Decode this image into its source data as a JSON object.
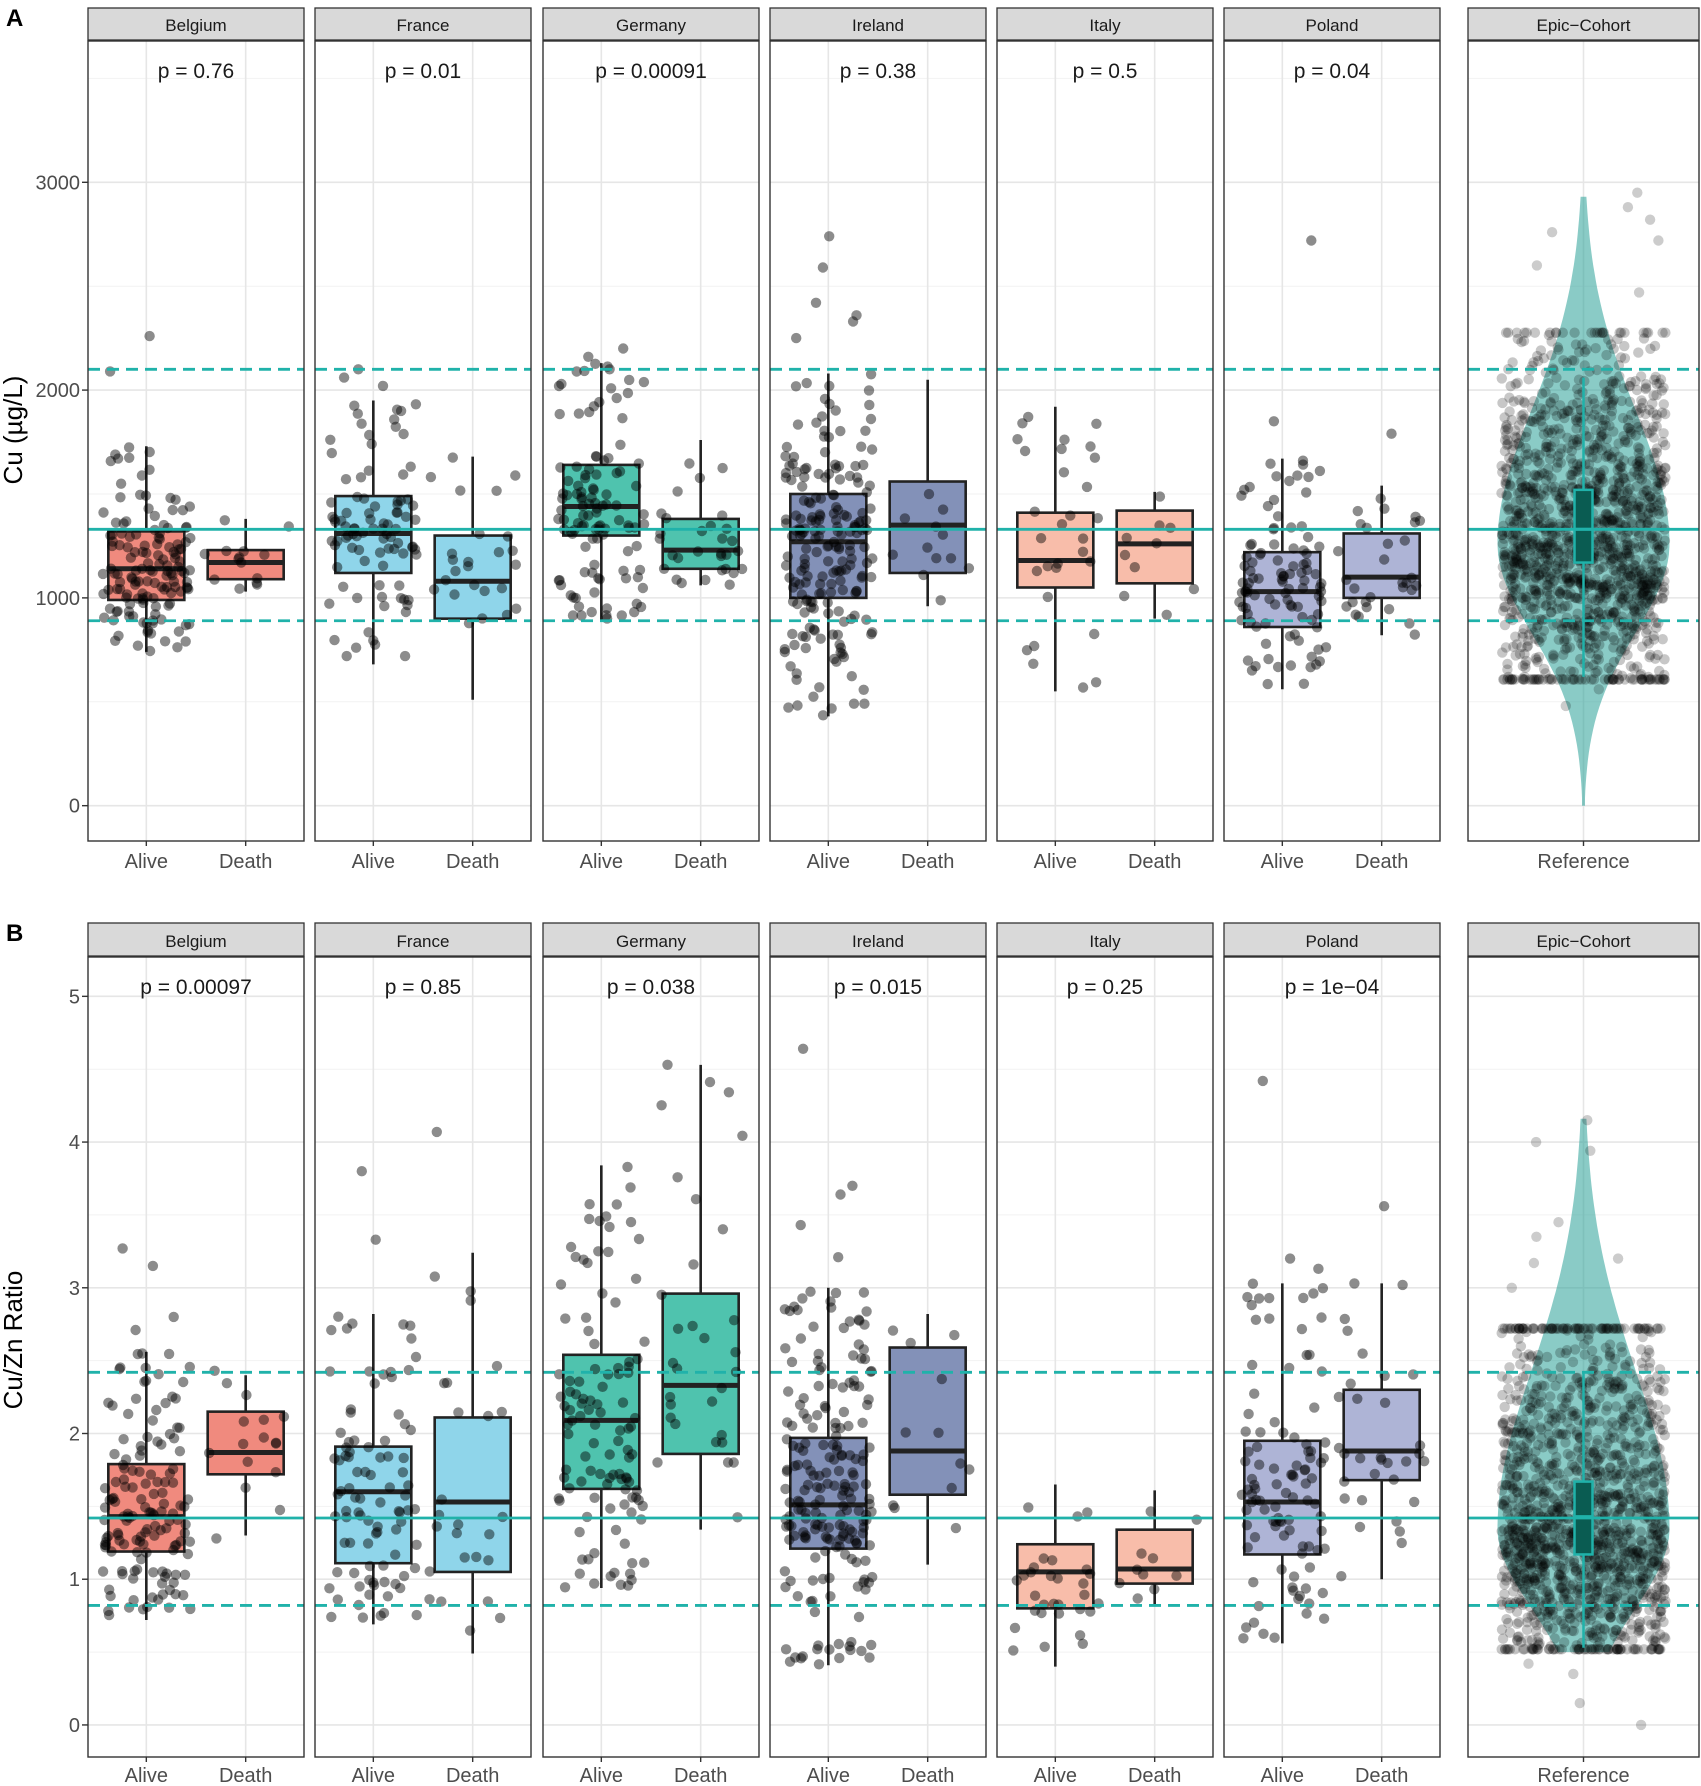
{
  "figure": {
    "reference_lines": {
      "color": "#20B2AA",
      "A": {
        "solid": 1330,
        "dashed": [
          890,
          2100
        ]
      },
      "B": {
        "solid": 1.42,
        "dashed": [
          0.82,
          2.42
        ]
      }
    },
    "point_color": "#000000",
    "violin_color": "#2aa198",
    "violin_box_color": "#0a5c52"
  },
  "chart_data": [
    {
      "panel": "A",
      "type": "box",
      "ylabel": "Cu (µg/L)",
      "ylim": [
        -170,
        3680
      ],
      "yticks": [
        0,
        1000,
        2000,
        3000
      ],
      "ytick_labels": [
        "0",
        "1000",
        "2000",
        "3000"
      ],
      "minor_ticks": [
        500,
        1500,
        2500,
        3500
      ],
      "facets": [
        {
          "name": "Belgium",
          "p": "p = 0.76",
          "fill": "#F08A7E",
          "groups": [
            {
              "label": "Alive",
              "min": 740,
              "q1": 990,
              "median": 1140,
              "q3": 1320,
              "max": 1730,
              "n": 140,
              "outliers": [
                2260,
                2090
              ]
            },
            {
              "label": "Death",
              "min": 1030,
              "q1": 1090,
              "median": 1170,
              "q3": 1230,
              "max": 1380,
              "n": 14,
              "outliers": []
            }
          ]
        },
        {
          "name": "France",
          "p": "p = 0.01",
          "fill": "#8FD5EA",
          "groups": [
            {
              "label": "Alive",
              "min": 680,
              "q1": 1120,
              "median": 1310,
              "q3": 1490,
              "max": 1950,
              "n": 90,
              "outliers": [
                2060,
                2100,
                2020
              ]
            },
            {
              "label": "Death",
              "min": 510,
              "q1": 900,
              "median": 1080,
              "q3": 1300,
              "max": 1680,
              "n": 25,
              "outliers": []
            }
          ]
        },
        {
          "name": "Germany",
          "p": "p = 0.00091",
          "fill": "#4FC3AE",
          "groups": [
            {
              "label": "Alive",
              "min": 890,
              "q1": 1300,
              "median": 1440,
              "q3": 1640,
              "max": 2130,
              "n": 110,
              "outliers": [
                2200,
                2160,
                2100
              ]
            },
            {
              "label": "Death",
              "min": 1060,
              "q1": 1140,
              "median": 1230,
              "q3": 1380,
              "max": 1760,
              "n": 30,
              "outliers": []
            }
          ]
        },
        {
          "name": "Ireland",
          "p": "p = 0.38",
          "fill": "#8391B8",
          "groups": [
            {
              "label": "Alive",
              "min": 430,
              "q1": 1000,
              "median": 1270,
              "q3": 1500,
              "max": 2080,
              "n": 200,
              "outliers": [
                2590,
                2420,
                2360,
                2740,
                2250,
                2330
              ]
            },
            {
              "label": "Death",
              "min": 960,
              "q1": 1120,
              "median": 1350,
              "q3": 1560,
              "max": 2050,
              "n": 12,
              "outliers": []
            }
          ]
        },
        {
          "name": "Italy",
          "p": "p = 0.5",
          "fill": "#F8BDAA",
          "groups": [
            {
              "label": "Alive",
              "min": 550,
              "q1": 1050,
              "median": 1180,
              "q3": 1410,
              "max": 1920,
              "n": 30,
              "outliers": []
            },
            {
              "label": "Death",
              "min": 900,
              "q1": 1070,
              "median": 1260,
              "q3": 1420,
              "max": 1510,
              "n": 10,
              "outliers": []
            }
          ]
        },
        {
          "name": "Poland",
          "p": "p = 0.04",
          "fill": "#AEB4D6",
          "groups": [
            {
              "label": "Alive",
              "min": 560,
              "q1": 860,
              "median": 1030,
              "q3": 1220,
              "max": 1670,
              "n": 100,
              "outliers": [
                2720,
                1850,
                1660
              ]
            },
            {
              "label": "Death",
              "min": 820,
              "q1": 1000,
              "median": 1100,
              "q3": 1310,
              "max": 1540,
              "n": 30,
              "outliers": [
                1790
              ]
            }
          ]
        },
        {
          "name": "Epic−Cohort",
          "p": "",
          "reference": true,
          "groups": [
            {
              "label": "Reference",
              "min": 620,
              "q1": 1170,
              "median": 1330,
              "q3": 1520,
              "max": 2060,
              "violin_min": 0,
              "violin_max": 2930,
              "violin_center": 1260,
              "n": 1500,
              "outliers": [
                2950,
                2880,
                2820,
                2760,
                2720,
                2600,
                2470,
                480,
                560,
                620
              ]
            }
          ]
        }
      ]
    },
    {
      "panel": "B",
      "type": "box",
      "ylabel": "Cu/Zn Ratio",
      "ylim": [
        -0.22,
        5.27
      ],
      "yticks": [
        0,
        1,
        2,
        3,
        4,
        5
      ],
      "ytick_labels": [
        "0",
        "1",
        "2",
        "3",
        "4",
        "5"
      ],
      "minor_ticks": [
        0.5,
        1.5,
        2.5,
        3.5,
        4.5
      ],
      "facets": [
        {
          "name": "Belgium",
          "p": "p = 0.00097",
          "fill": "#F08A7E",
          "groups": [
            {
              "label": "Alive",
              "min": 0.72,
              "q1": 1.19,
              "median": 1.43,
              "q3": 1.79,
              "max": 2.56,
              "n": 140,
              "outliers": [
                3.27,
                3.15,
                2.8,
                2.71
              ]
            },
            {
              "label": "Death",
              "min": 1.3,
              "q1": 1.72,
              "median": 1.87,
              "q3": 2.15,
              "max": 2.4,
              "n": 14,
              "outliers": [
                2.43,
                1.28
              ]
            }
          ]
        },
        {
          "name": "France",
          "p": "p = 0.85",
          "fill": "#8FD5EA",
          "groups": [
            {
              "label": "Alive",
              "min": 0.69,
              "q1": 1.11,
              "median": 1.6,
              "q3": 1.91,
              "max": 2.82,
              "n": 90,
              "outliers": [
                3.8,
                3.33
              ]
            },
            {
              "label": "Death",
              "min": 0.49,
              "q1": 1.05,
              "median": 1.53,
              "q3": 2.11,
              "max": 3.24,
              "n": 25,
              "outliers": [
                4.07
              ]
            }
          ]
        },
        {
          "name": "Germany",
          "p": "p = 0.038",
          "fill": "#4FC3AE",
          "groups": [
            {
              "label": "Alive",
              "min": 0.94,
              "q1": 1.62,
              "median": 2.09,
              "q3": 2.54,
              "max": 3.84,
              "n": 110,
              "outliers": []
            },
            {
              "label": "Death",
              "min": 1.34,
              "q1": 1.86,
              "median": 2.33,
              "q3": 2.96,
              "max": 4.53,
              "n": 30,
              "outliers": [
                4.53
              ]
            }
          ]
        },
        {
          "name": "Ireland",
          "p": "p = 0.015",
          "fill": "#8391B8",
          "groups": [
            {
              "label": "Alive",
              "min": 0.41,
              "q1": 1.21,
              "median": 1.51,
              "q3": 1.97,
              "max": 3.0,
              "n": 200,
              "outliers": [
                4.64,
                3.7,
                3.64,
                3.43,
                3.21
              ]
            },
            {
              "label": "Death",
              "min": 1.1,
              "q1": 1.58,
              "median": 1.88,
              "q3": 2.59,
              "max": 2.82,
              "n": 12,
              "outliers": []
            }
          ]
        },
        {
          "name": "Italy",
          "p": "p = 0.25",
          "fill": "#F8BDAA",
          "groups": [
            {
              "label": "Alive",
              "min": 0.4,
              "q1": 0.8,
              "median": 1.05,
              "q3": 1.24,
              "max": 1.65,
              "n": 30,
              "outliers": []
            },
            {
              "label": "Death",
              "min": 0.82,
              "q1": 0.97,
              "median": 1.07,
              "q3": 1.34,
              "max": 1.61,
              "n": 10,
              "outliers": []
            }
          ]
        },
        {
          "name": "Poland",
          "p": "p = 1e−04",
          "fill": "#AEB4D6",
          "groups": [
            {
              "label": "Alive",
              "min": 0.56,
              "q1": 1.17,
              "median": 1.53,
              "q3": 1.95,
              "max": 3.03,
              "n": 100,
              "outliers": [
                4.42,
                3.2,
                3.13
              ]
            },
            {
              "label": "Death",
              "min": 1.0,
              "q1": 1.68,
              "median": 1.88,
              "q3": 2.3,
              "max": 3.03,
              "n": 30,
              "outliers": [
                3.56,
                3.02,
                3.03
              ]
            }
          ]
        },
        {
          "name": "Epic−Cohort",
          "p": "",
          "reference": true,
          "groups": [
            {
              "label": "Reference",
              "min": 0.53,
              "q1": 1.17,
              "median": 1.43,
              "q3": 1.67,
              "max": 2.42,
              "violin_min": 0.5,
              "violin_max": 4.16,
              "violin_center": 1.35,
              "n": 1500,
              "outliers": [
                4.15,
                4.0,
                3.94,
                3.45,
                3.35,
                3.2,
                3.17,
                3.0,
                0.35,
                0.15,
                0.0,
                0.42
              ]
            }
          ]
        }
      ]
    }
  ]
}
